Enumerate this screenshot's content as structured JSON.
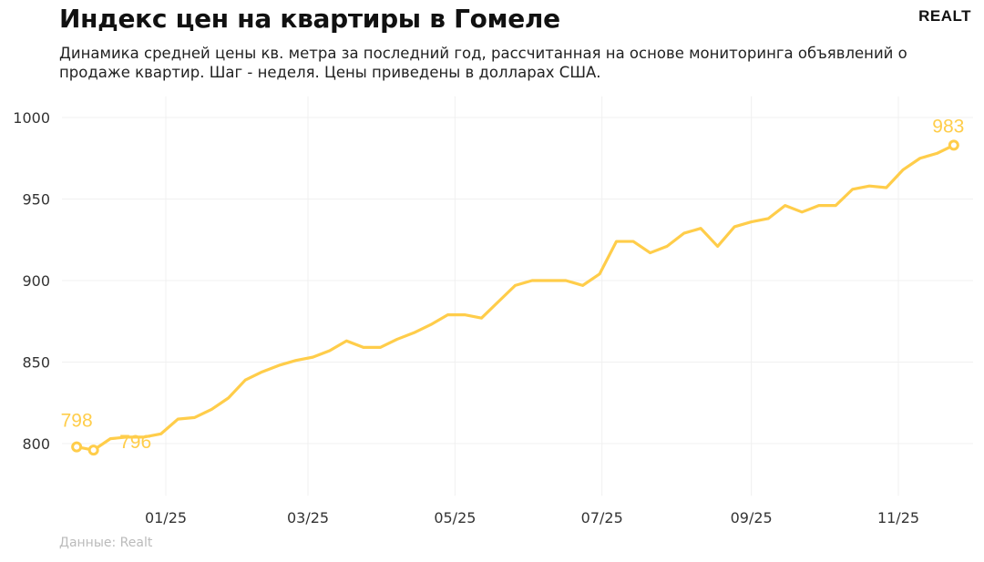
{
  "header": {
    "title": "Индекс цен на квартиры в Гомеле",
    "subtitle": "Динамика средней цены кв. метра за последний год, рассчитанная на основе мониторинга объявлений о продаже квартир. Шаг - неделя. Цены приведены в долларах США.",
    "logo": "REALT"
  },
  "footer": {
    "source": "Данные: Realt"
  },
  "chart_data": {
    "type": "line",
    "title": "Индекс цен на квартиры в Гомеле",
    "xlabel": "",
    "ylabel": "",
    "ylim": [
      768,
      1013
    ],
    "yticks": [
      800,
      850,
      900,
      950,
      1000
    ],
    "xticks": [
      {
        "date": "2025-01-01",
        "label": "01/25"
      },
      {
        "date": "2025-03-01",
        "label": "03/25"
      },
      {
        "date": "2025-05-01",
        "label": "05/25"
      },
      {
        "date": "2025-07-01",
        "label": "07/25"
      },
      {
        "date": "2025-09-01",
        "label": "09/25"
      },
      {
        "date": "2025-11-01",
        "label": "11/25"
      }
    ],
    "grid": true,
    "color": "#FFCD4A",
    "x": [
      "2024-11-25",
      "2024-12-02",
      "2024-12-09",
      "2024-12-16",
      "2024-12-23",
      "2024-12-30",
      "2025-01-06",
      "2025-01-13",
      "2025-01-20",
      "2025-01-27",
      "2025-02-03",
      "2025-02-10",
      "2025-02-17",
      "2025-02-24",
      "2025-03-03",
      "2025-03-10",
      "2025-03-17",
      "2025-03-24",
      "2025-03-31",
      "2025-04-07",
      "2025-04-14",
      "2025-04-21",
      "2025-04-28",
      "2025-05-05",
      "2025-05-12",
      "2025-05-19",
      "2025-05-26",
      "2025-06-02",
      "2025-06-09",
      "2025-06-16",
      "2025-06-23",
      "2025-06-30",
      "2025-07-07",
      "2025-07-14",
      "2025-07-21",
      "2025-07-28",
      "2025-08-04",
      "2025-08-11",
      "2025-08-18",
      "2025-08-25",
      "2025-09-01",
      "2025-09-08",
      "2025-09-15",
      "2025-09-22",
      "2025-09-29",
      "2025-10-06",
      "2025-10-13",
      "2025-10-20",
      "2025-10-27",
      "2025-11-03",
      "2025-11-10",
      "2025-11-17",
      "2025-11-24"
    ],
    "values": [
      798,
      796,
      803,
      804,
      804,
      806,
      815,
      816,
      821,
      828,
      839,
      844,
      848,
      851,
      853,
      857,
      863,
      859,
      859,
      864,
      868,
      873,
      879,
      879,
      877,
      887,
      897,
      900,
      900,
      900,
      897,
      904,
      924,
      924,
      917,
      921,
      929,
      932,
      921,
      933,
      936,
      938,
      946,
      942,
      946,
      946,
      956,
      958,
      957,
      968,
      975,
      978,
      983
    ],
    "annotations": [
      {
        "index": 0,
        "label": "798"
      },
      {
        "index": 1,
        "label": "796"
      },
      {
        "index": 52,
        "label": "983"
      }
    ]
  }
}
